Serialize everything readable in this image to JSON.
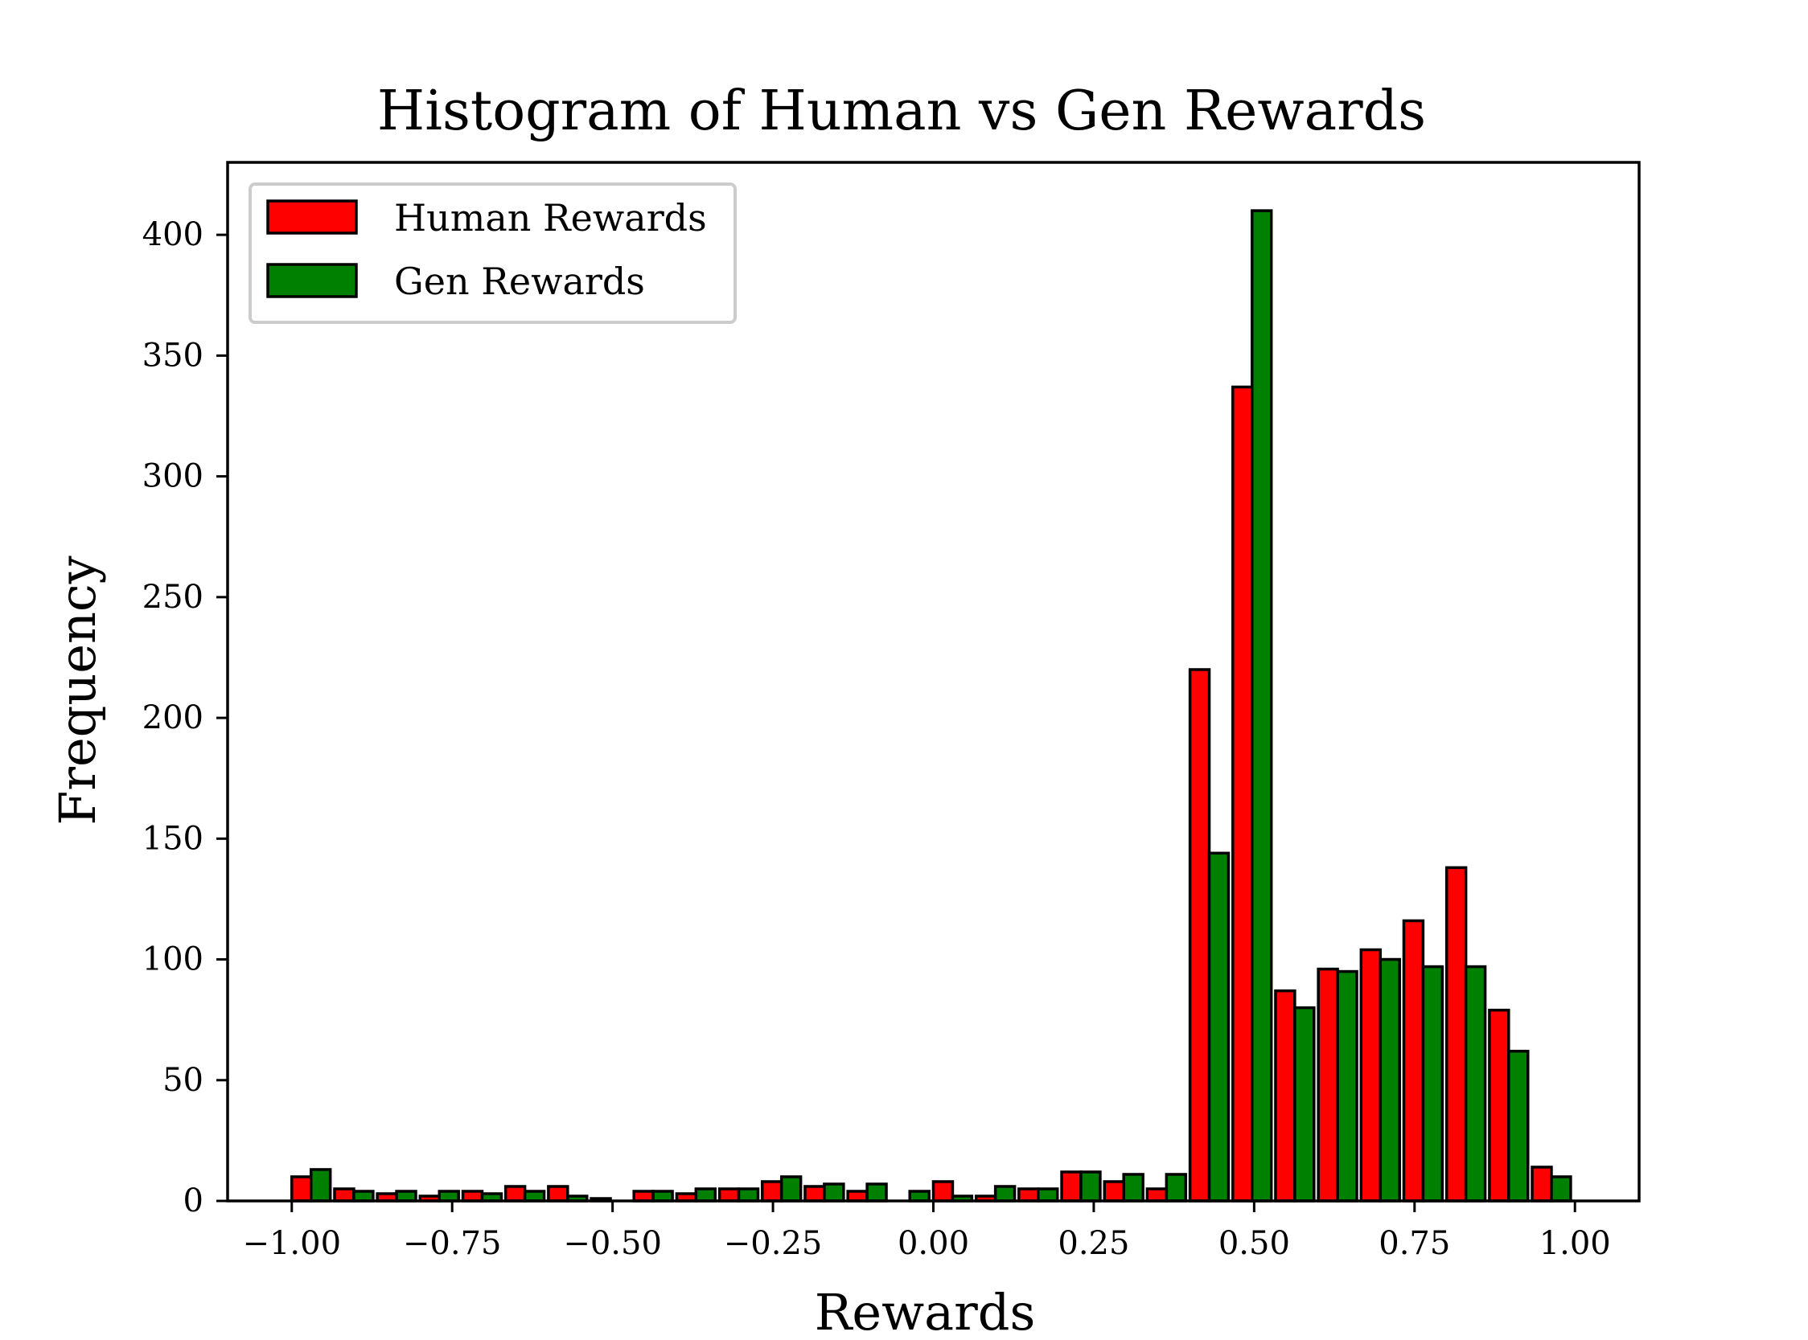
{
  "chart_data": {
    "type": "bar",
    "title": "Histogram of Human vs Gen Rewards",
    "xlabel": "Rewards",
    "ylabel": "Frequency",
    "xlim": [
      -1.1,
      1.1
    ],
    "ylim": [
      0,
      430
    ],
    "xticks": [
      -1.0,
      -0.75,
      -0.5,
      -0.25,
      0.0,
      0.25,
      0.5,
      0.75,
      1.0
    ],
    "xtick_labels": [
      "−1.00",
      "−0.75",
      "−0.50",
      "−0.25",
      "0.00",
      "0.25",
      "0.50",
      "0.75",
      "1.00"
    ],
    "yticks": [
      0,
      50,
      100,
      150,
      200,
      250,
      300,
      350,
      400
    ],
    "ytick_labels": [
      "0",
      "50",
      "100",
      "150",
      "200",
      "250",
      "300",
      "350",
      "400"
    ],
    "legend_position": "top-left",
    "grid": false,
    "bin_width": 0.0667,
    "bin_starts": [
      -1.0,
      -0.9333,
      -0.8667,
      -0.8,
      -0.7333,
      -0.6667,
      -0.6,
      -0.5333,
      -0.4667,
      -0.4,
      -0.3333,
      -0.2667,
      -0.2,
      -0.1333,
      -0.0667,
      0.0,
      0.0667,
      0.1333,
      0.2,
      0.2667,
      0.3333,
      0.4,
      0.4667,
      0.5333,
      0.6,
      0.6667,
      0.7333,
      0.8,
      0.8667,
      0.9333
    ],
    "series": [
      {
        "name": "Human Rewards",
        "color": "#ff0000",
        "values": [
          10,
          5,
          3,
          2,
          4,
          6,
          6,
          1,
          4,
          3,
          5,
          8,
          6,
          4,
          0,
          8,
          2,
          5,
          12,
          8,
          5,
          220,
          337,
          87,
          96,
          104,
          116,
          138,
          79,
          14
        ]
      },
      {
        "name": "Gen Rewards",
        "color": "#008000",
        "values": [
          13,
          4,
          4,
          4,
          3,
          4,
          2,
          0,
          4,
          5,
          5,
          10,
          7,
          7,
          4,
          2,
          6,
          5,
          12,
          11,
          11,
          144,
          410,
          80,
          95,
          100,
          97,
          97,
          62,
          10
        ]
      }
    ]
  }
}
